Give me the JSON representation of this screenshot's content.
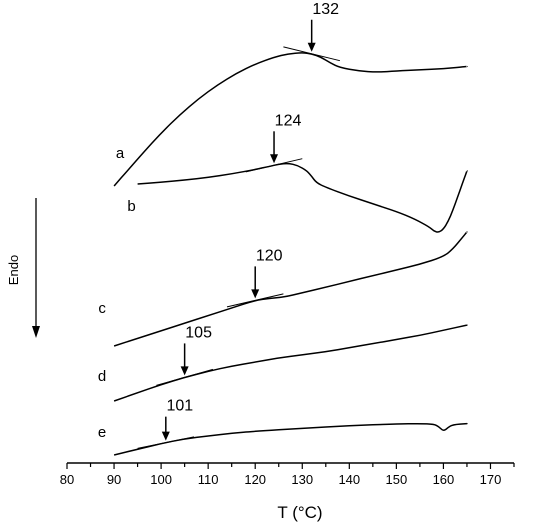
{
  "chart_data": {
    "type": "line",
    "xlabel": "T (°C)",
    "ylabel": "Endo",
    "xlim": [
      80,
      175
    ],
    "xticks": [
      80,
      90,
      100,
      110,
      120,
      130,
      140,
      150,
      160,
      170
    ],
    "grid": false,
    "series": [
      {
        "name": "a",
        "marker": "132",
        "marker_x": 132,
        "x": [
          90,
          93,
          96,
          100,
          104,
          108,
          112,
          116,
          120,
          124,
          127,
          130,
          132,
          134,
          136,
          138,
          142,
          146,
          150,
          155,
          160,
          165
        ],
        "y": [
          0,
          7,
          14,
          23,
          31,
          38,
          44,
          49,
          53,
          56,
          57.5,
          58,
          57.5,
          56,
          53.5,
          51.5,
          50,
          49.5,
          50,
          50.5,
          51,
          52
        ]
      },
      {
        "name": "b",
        "marker": "124",
        "marker_x": 124,
        "x": [
          95,
          100,
          105,
          110,
          115,
          120,
          123,
          125,
          127,
          129,
          131,
          132,
          133,
          135,
          140,
          145,
          150,
          154,
          157,
          158,
          159,
          160,
          161,
          162,
          163,
          164,
          165
        ],
        "y": [
          0,
          0.8,
          1.8,
          3,
          4.6,
          6.6,
          8,
          9,
          9.4,
          8.5,
          6,
          3.5,
          0.6,
          -1.5,
          -5.5,
          -9,
          -12.5,
          -16,
          -19.5,
          -21.5,
          -22,
          -20.5,
          -17,
          -12,
          -6,
          0,
          6
        ]
      },
      {
        "name": "c",
        "marker": "120",
        "marker_x": 120,
        "x": [
          90,
          95,
          100,
          105,
          110,
          115,
          120,
          123,
          126,
          130,
          135,
          140,
          145,
          150,
          155,
          160,
          162,
          164,
          165
        ],
        "y": [
          0,
          4,
          8,
          12,
          16,
          20,
          24,
          25,
          25.7,
          28,
          31,
          34,
          37,
          40,
          43,
          47,
          51,
          57,
          60
        ]
      },
      {
        "name": "d",
        "marker": "105",
        "marker_x": 105,
        "x": [
          90,
          95,
          100,
          105,
          110,
          115,
          120,
          125,
          130,
          135,
          140,
          145,
          150,
          155,
          160,
          165
        ],
        "y": [
          0,
          4,
          8,
          11.5,
          14.5,
          17,
          19,
          21,
          22.5,
          24,
          26,
          28,
          30,
          32,
          34.5,
          37
        ]
      },
      {
        "name": "e",
        "marker": "101",
        "marker_x": 101,
        "x": [
          90,
          95,
          100,
          105,
          110,
          115,
          120,
          130,
          140,
          150,
          155,
          158,
          159,
          160,
          161,
          162,
          165
        ],
        "y": [
          0,
          3,
          6,
          8.5,
          10,
          11.5,
          12.5,
          14,
          15.5,
          16.3,
          16.5,
          16.2,
          15,
          12.5,
          14.5,
          16,
          16.5
        ]
      }
    ]
  }
}
